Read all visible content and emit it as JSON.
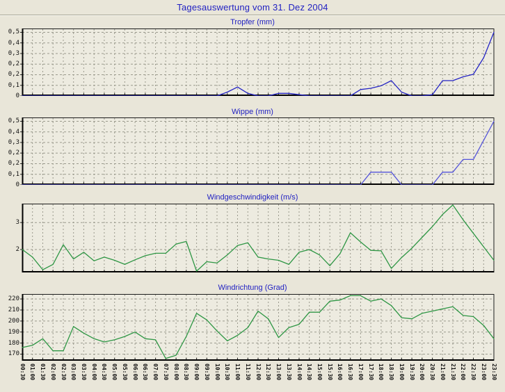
{
  "page": {
    "title": "Tagesauswertung vom 31. Dez 2004"
  },
  "colors": {
    "background": "#e9e6d9",
    "plot_background": "#edebe0",
    "grid": "#9a998c",
    "axis": "#1c1c1c",
    "title_blue": "#2121c2",
    "label": "#111111"
  },
  "time_labels": [
    "00:30",
    "01:00",
    "01:30",
    "02:00",
    "02:30",
    "03:00",
    "03:30",
    "04:00",
    "04:30",
    "05:00",
    "05:30",
    "06:00",
    "06:30",
    "07:00",
    "07:30",
    "08:00",
    "08:30",
    "09:00",
    "09:30",
    "10:00",
    "10:30",
    "11:00",
    "11:30",
    "12:00",
    "12:30",
    "13:00",
    "13:30",
    "14:00",
    "14:30",
    "15:00",
    "15:30",
    "16:00",
    "16:30",
    "17:00",
    "17:30",
    "18:00",
    "18:30",
    "19:00",
    "19:30",
    "20:00",
    "20:30",
    "21:00",
    "21:30",
    "22:00",
    "22:30",
    "23:00",
    "23:30"
  ],
  "chart_data": [
    {
      "type": "line",
      "title": "Tropfer (mm)",
      "line_color": "#2424c4",
      "ylim": [
        0,
        0.53
      ],
      "yticks": [
        {
          "v": 0.5,
          "label": "0,5"
        },
        {
          "v": 0.4167,
          "label": "0,4"
        },
        {
          "v": 0.3333,
          "label": "0,3"
        },
        {
          "v": 0.25,
          "label": "0,2"
        },
        {
          "v": 0.1667,
          "label": "0,2"
        },
        {
          "v": 0.0833,
          "label": "0,1"
        },
        {
          "v": 0,
          "label": "0"
        }
      ],
      "values": [
        0,
        0,
        0,
        0,
        0,
        0,
        0,
        0,
        0,
        0,
        0,
        0,
        0,
        0,
        0,
        0,
        0,
        0,
        0,
        0,
        0.03,
        0.07,
        0.02,
        0,
        0,
        0.02,
        0.02,
        0.01,
        0,
        0,
        0,
        0,
        0,
        0.05,
        0.06,
        0.08,
        0.12,
        0.03,
        0,
        0,
        0.01,
        0.12,
        0.12,
        0.15,
        0.17,
        0.3,
        0.5
      ]
    },
    {
      "type": "line",
      "title": "Wippe (mm)",
      "line_color": "#5353d9",
      "ylim": [
        0,
        0.53
      ],
      "yticks": [
        {
          "v": 0.5,
          "label": "0,5"
        },
        {
          "v": 0.4167,
          "label": "0,4"
        },
        {
          "v": 0.3333,
          "label": "0,3"
        },
        {
          "v": 0.25,
          "label": "0,2"
        },
        {
          "v": 0.1667,
          "label": "0,2"
        },
        {
          "v": 0.0833,
          "label": "0,1"
        },
        {
          "v": 0,
          "label": "0"
        }
      ],
      "values": [
        0,
        0,
        0,
        0,
        0,
        0,
        0,
        0,
        0,
        0,
        0,
        0,
        0,
        0,
        0,
        0,
        0,
        0,
        0,
        0,
        0,
        0,
        0,
        0,
        0,
        0,
        0,
        0,
        0,
        0,
        0,
        0,
        0,
        0,
        0.1,
        0.1,
        0.1,
        0,
        0,
        0,
        0,
        0.1,
        0.1,
        0.2,
        0.2,
        0.35,
        0.5
      ]
    },
    {
      "type": "line",
      "title": "Windgeschwindigkeit (m/s)",
      "line_color": "#2e9644",
      "ylim": [
        1.15,
        3.7
      ],
      "yticks": [
        {
          "v": 3,
          "label": "3"
        },
        {
          "v": 2,
          "label": "2"
        }
      ],
      "values": [
        2.0,
        1.72,
        1.25,
        1.45,
        2.18,
        1.65,
        1.9,
        1.58,
        1.72,
        1.6,
        1.45,
        1.62,
        1.77,
        1.86,
        1.86,
        2.2,
        2.3,
        1.2,
        1.55,
        1.5,
        1.8,
        2.15,
        2.25,
        1.72,
        1.65,
        1.6,
        1.45,
        1.9,
        2.0,
        1.8,
        1.4,
        1.85,
        2.62,
        2.28,
        1.97,
        1.95,
        1.3,
        1.7,
        2.05,
        2.45,
        2.85,
        3.3,
        3.65,
        3.1,
        2.6,
        2.1,
        1.6
      ]
    },
    {
      "type": "line",
      "title": "Windrichtung (Grad)",
      "line_color": "#2e9644",
      "ylim": [
        164,
        224.5
      ],
      "yticks": [
        {
          "v": 220,
          "label": "220"
        },
        {
          "v": 210,
          "label": "210"
        },
        {
          "v": 200,
          "label": "200"
        },
        {
          "v": 190,
          "label": "190"
        },
        {
          "v": 180,
          "label": "180"
        },
        {
          "v": 170,
          "label": "170"
        }
      ],
      "values": [
        176,
        178,
        184,
        173,
        173,
        195,
        189,
        184,
        181,
        183,
        186,
        190,
        184,
        183,
        166,
        169,
        186,
        207,
        201,
        191,
        182,
        187,
        194,
        209,
        202,
        185,
        194,
        197,
        208,
        208,
        218,
        219,
        223,
        223,
        218,
        220,
        214,
        203,
        202,
        207,
        209,
        211,
        213,
        205,
        204,
        196,
        184
      ]
    }
  ]
}
